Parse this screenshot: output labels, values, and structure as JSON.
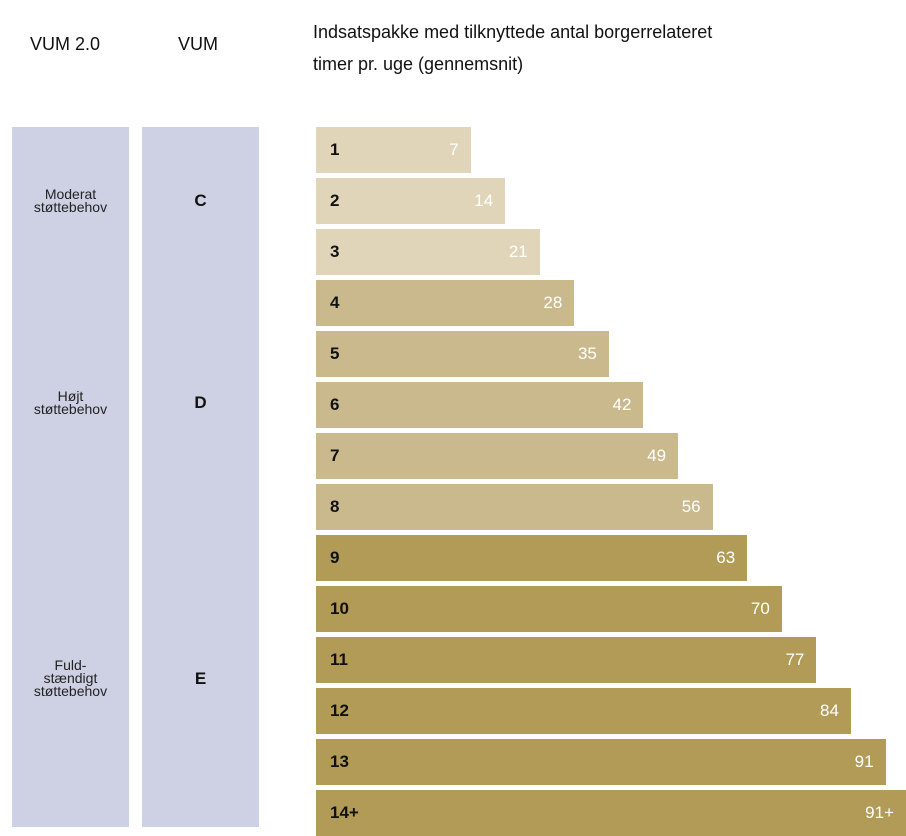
{
  "chart_data": {
    "type": "bar",
    "title": "Indsatspakke med tilknyttede antal borgerrelateret\ntimer pr. uge (gennemsnit)",
    "column_headers": [
      "VUM 2.0",
      "VUM"
    ],
    "groups": [
      {
        "vum2": "Moderat\nstøttebehov",
        "vum": "C",
        "color": "#e0d5b8",
        "categories": [
          "1",
          "2",
          "3"
        ],
        "values": [
          7,
          14,
          21
        ]
      },
      {
        "vum2": "Højt\nstøttebehov",
        "vum": "D",
        "color": "#cab98c",
        "categories": [
          "4",
          "5",
          "6",
          "7",
          "8"
        ],
        "values": [
          28,
          35,
          42,
          49,
          56
        ]
      },
      {
        "vum2": "Fuld-\nstændigt\nstøttebehov",
        "vum": "E",
        "color": "#b19b56",
        "categories": [
          "9",
          "10",
          "11",
          "12",
          "13",
          "14+"
        ],
        "values": [
          63,
          70,
          77,
          84,
          91,
          91
        ],
        "value_labels": [
          null,
          null,
          null,
          null,
          null,
          "91+"
        ]
      }
    ],
    "group_color": "#cdd1e3"
  }
}
